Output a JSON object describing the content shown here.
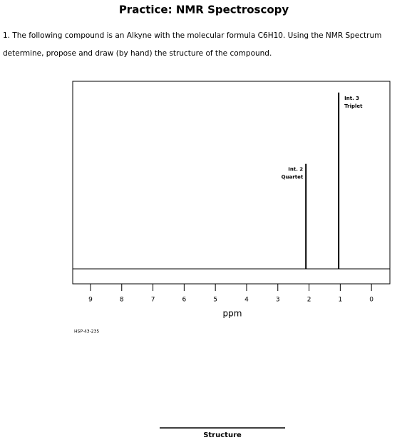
{
  "header": {
    "title": "Practice: NMR Spectroscopy"
  },
  "question": "1. The following compound is an Alkyne with the molecular formula C6H10. Using the NMR Spectrum determine, propose and draw (by hand) the structure of the compound.",
  "chart_data": {
    "type": "spectrum",
    "x": [
      2.1,
      1.05
    ],
    "values": [
      56,
      94
    ],
    "annotations": [
      [
        "Int. 2",
        "Quartet"
      ],
      [
        "Int. 3",
        "Triplet"
      ]
    ],
    "xlim": [
      9.57,
      -0.59
    ],
    "xticks": [
      9,
      8,
      7,
      6,
      5,
      4,
      3,
      2,
      1,
      0
    ],
    "ylim": [
      0,
      100
    ],
    "xlabel": "ppm",
    "code": "HSP-43-235",
    "color": "#000000"
  },
  "footer": {
    "label": "Structure"
  }
}
